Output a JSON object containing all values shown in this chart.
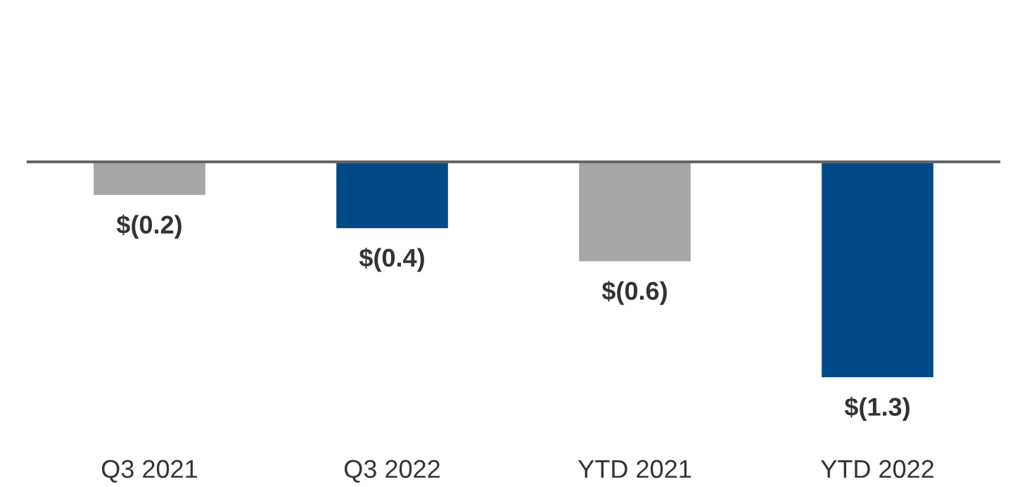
{
  "chart_data": {
    "type": "bar",
    "categories": [
      "Q3 2021",
      "Q3 2022",
      "YTD 2021",
      "YTD 2022"
    ],
    "values": [
      -0.2,
      -0.4,
      -0.6,
      -1.3
    ],
    "colors": [
      "#a6a6a6",
      "#004b87",
      "#a6a6a6",
      "#004b87"
    ],
    "value_labels": [
      "$(0.2)",
      "$(0.4)",
      "$(0.6)",
      "$(1.3)"
    ],
    "grid": false,
    "legend": false
  }
}
